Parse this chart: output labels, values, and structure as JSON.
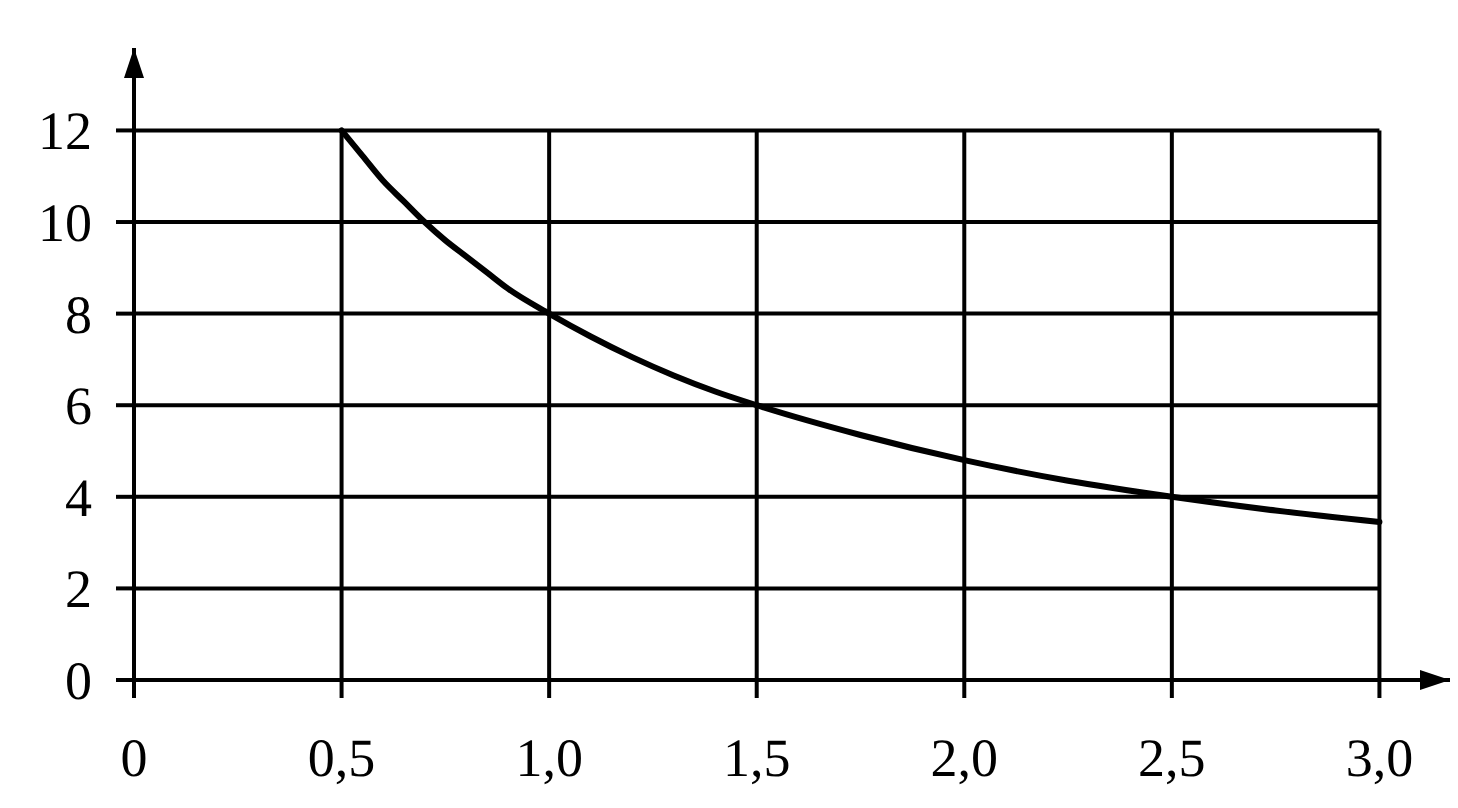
{
  "chart_data": {
    "type": "line",
    "x": [
      0.5,
      0.55,
      0.6,
      0.65,
      0.7,
      0.75,
      0.8,
      0.85,
      0.9,
      1.0,
      1.1,
      1.2,
      1.3,
      1.4,
      1.5,
      1.75,
      2.0,
      2.25,
      2.5,
      2.75,
      3.0
    ],
    "values": [
      12,
      11.45,
      10.9,
      10.45,
      10.0,
      9.6,
      9.25,
      8.9,
      8.55,
      8.0,
      7.5,
      7.05,
      6.65,
      6.3,
      6.0,
      5.35,
      4.8,
      4.35,
      4.0,
      3.7,
      3.45
    ],
    "color": "#000000",
    "xlim": [
      0,
      3.17
    ],
    "ylim": [
      0,
      13.8
    ],
    "xticks": [
      0,
      {
        "value": 0.5,
        "label": "0,5"
      },
      {
        "value": 1.0,
        "label": "1,0"
      },
      {
        "value": 1.5,
        "label": "1,5"
      },
      {
        "value": 2.0,
        "label": "2,0"
      },
      {
        "value": 2.5,
        "label": "2,5"
      },
      {
        "value": 3.0,
        "label": "3,0"
      }
    ],
    "yticks": [
      0,
      2,
      4,
      6,
      8,
      10,
      12
    ],
    "grid": true
  }
}
